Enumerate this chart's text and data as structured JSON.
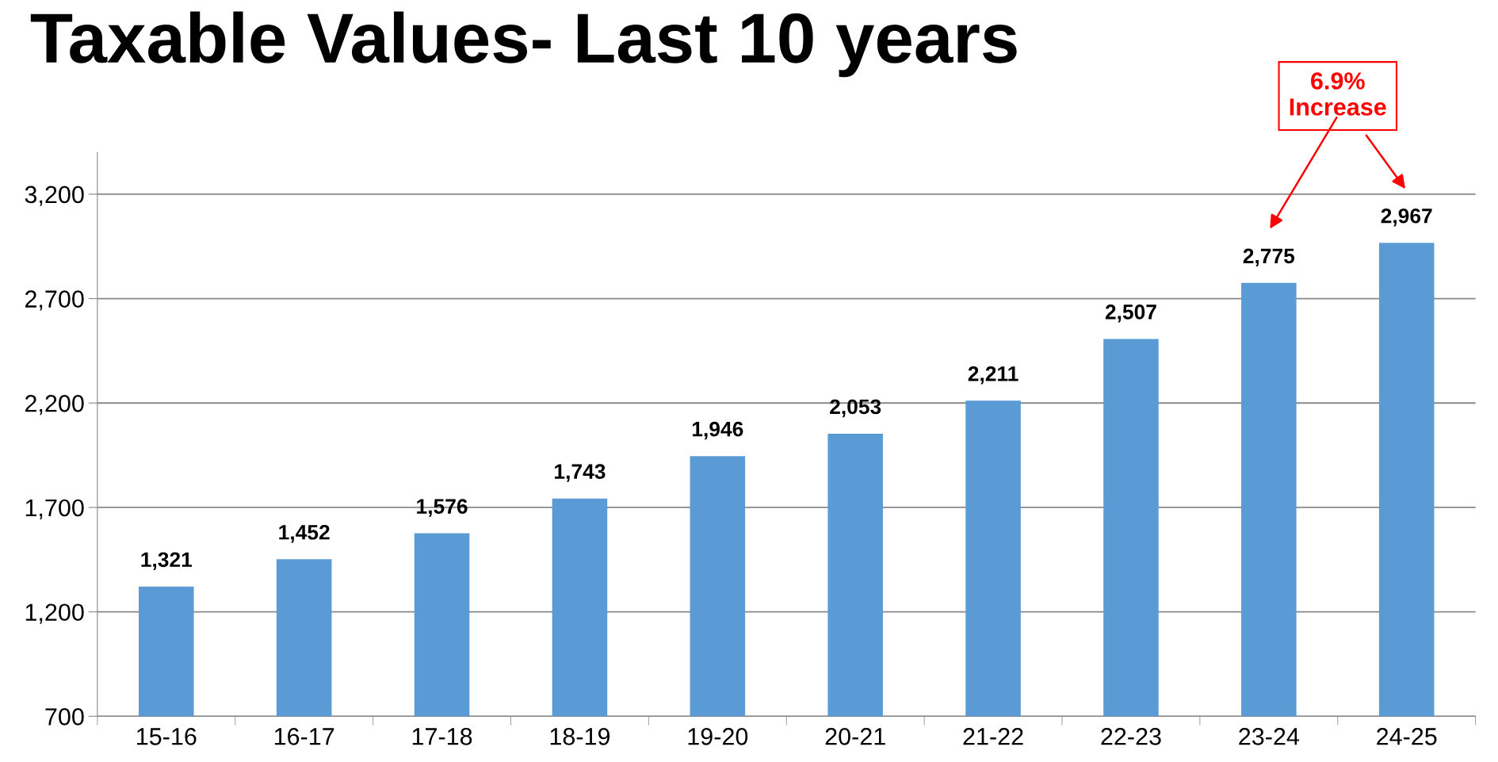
{
  "chart_data": {
    "type": "bar",
    "title": "Taxable Values- Last 10 years",
    "categories": [
      "15-16",
      "16-17",
      "17-18",
      "18-19",
      "19-20",
      "20-21",
      "21-22",
      "22-23",
      "23-24",
      "24-25"
    ],
    "values": [
      1321,
      1452,
      1576,
      1743,
      1946,
      2053,
      2211,
      2507,
      2775,
      2967
    ],
    "color": "#5b9bd5",
    "ylim": [
      700,
      3400
    ],
    "yticks": [
      {
        "value": 700,
        "label": "700"
      },
      {
        "value": 1200,
        "label": "1,200"
      },
      {
        "value": 1700,
        "label": "1,700"
      },
      {
        "value": 2200,
        "label": "2,200"
      },
      {
        "value": 2700,
        "label": "2,700"
      },
      {
        "value": 3200,
        "label": "3,200"
      }
    ],
    "value_labels": [
      "1,321",
      "1,452",
      "1,576",
      "1,743",
      "1,946",
      "2,053",
      "2,211",
      "2,507",
      "2,775",
      "2,967"
    ],
    "grid": "y",
    "annotations": [
      "6.9%\nIncrease"
    ]
  }
}
